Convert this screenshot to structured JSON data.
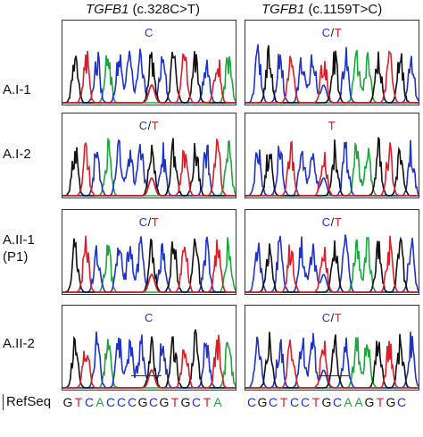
{
  "titles": {
    "left_gene": "TGFB1",
    "left_variant": "(c.328C>T)",
    "right_gene": "TGFB1",
    "right_variant": "(c.1159T>C)"
  },
  "rows": [
    {
      "label": "A.I-1",
      "label2": "",
      "left_call": [
        {
          "t": "C",
          "color": "#1f33c4"
        }
      ],
      "right_call": [
        {
          "t": "C",
          "color": "#1f33c4"
        },
        {
          "t": "/",
          "color": "#111111"
        },
        {
          "t": "T",
          "color": "#d6202a"
        }
      ]
    },
    {
      "label": "A.I-2",
      "label2": "",
      "left_call": [
        {
          "t": "C",
          "color": "#1f33c4"
        },
        {
          "t": "/",
          "color": "#111111"
        },
        {
          "t": "T",
          "color": "#d6202a"
        }
      ],
      "right_call": [
        {
          "t": "T",
          "color": "#d6202a"
        }
      ]
    },
    {
      "label": "A.II-1",
      "label2": "(P1)",
      "left_call": [
        {
          "t": "C",
          "color": "#1f33c4"
        },
        {
          "t": "/",
          "color": "#111111"
        },
        {
          "t": "T",
          "color": "#d6202a"
        }
      ],
      "right_call": [
        {
          "t": "C",
          "color": "#1f33c4"
        },
        {
          "t": "/",
          "color": "#111111"
        },
        {
          "t": "T",
          "color": "#d6202a"
        }
      ]
    },
    {
      "label": "A.II-2",
      "label2": "",
      "left_call": [
        {
          "t": "C",
          "color": "#1f33c4"
        }
      ],
      "right_call": [
        {
          "t": "C",
          "color": "#1f33c4"
        },
        {
          "t": "/",
          "color": "#111111"
        },
        {
          "t": "T",
          "color": "#d6202a"
        }
      ]
    }
  ],
  "refseq": {
    "label": "RefSeq",
    "left": [
      "G",
      "T",
      "C",
      "A",
      "C",
      "C",
      "C",
      "G",
      "C",
      "G",
      "T",
      "G",
      "C",
      "T",
      "A"
    ],
    "right": [
      "C",
      "G",
      "C",
      "T",
      "C",
      "C",
      "T",
      "G",
      "C",
      "A",
      "A",
      "G",
      "T",
      "G",
      "C"
    ]
  },
  "base_colors": {
    "A": "#1aa83a",
    "C": "#1f33c4",
    "G": "#111111",
    "T": "#d6202a"
  }
}
